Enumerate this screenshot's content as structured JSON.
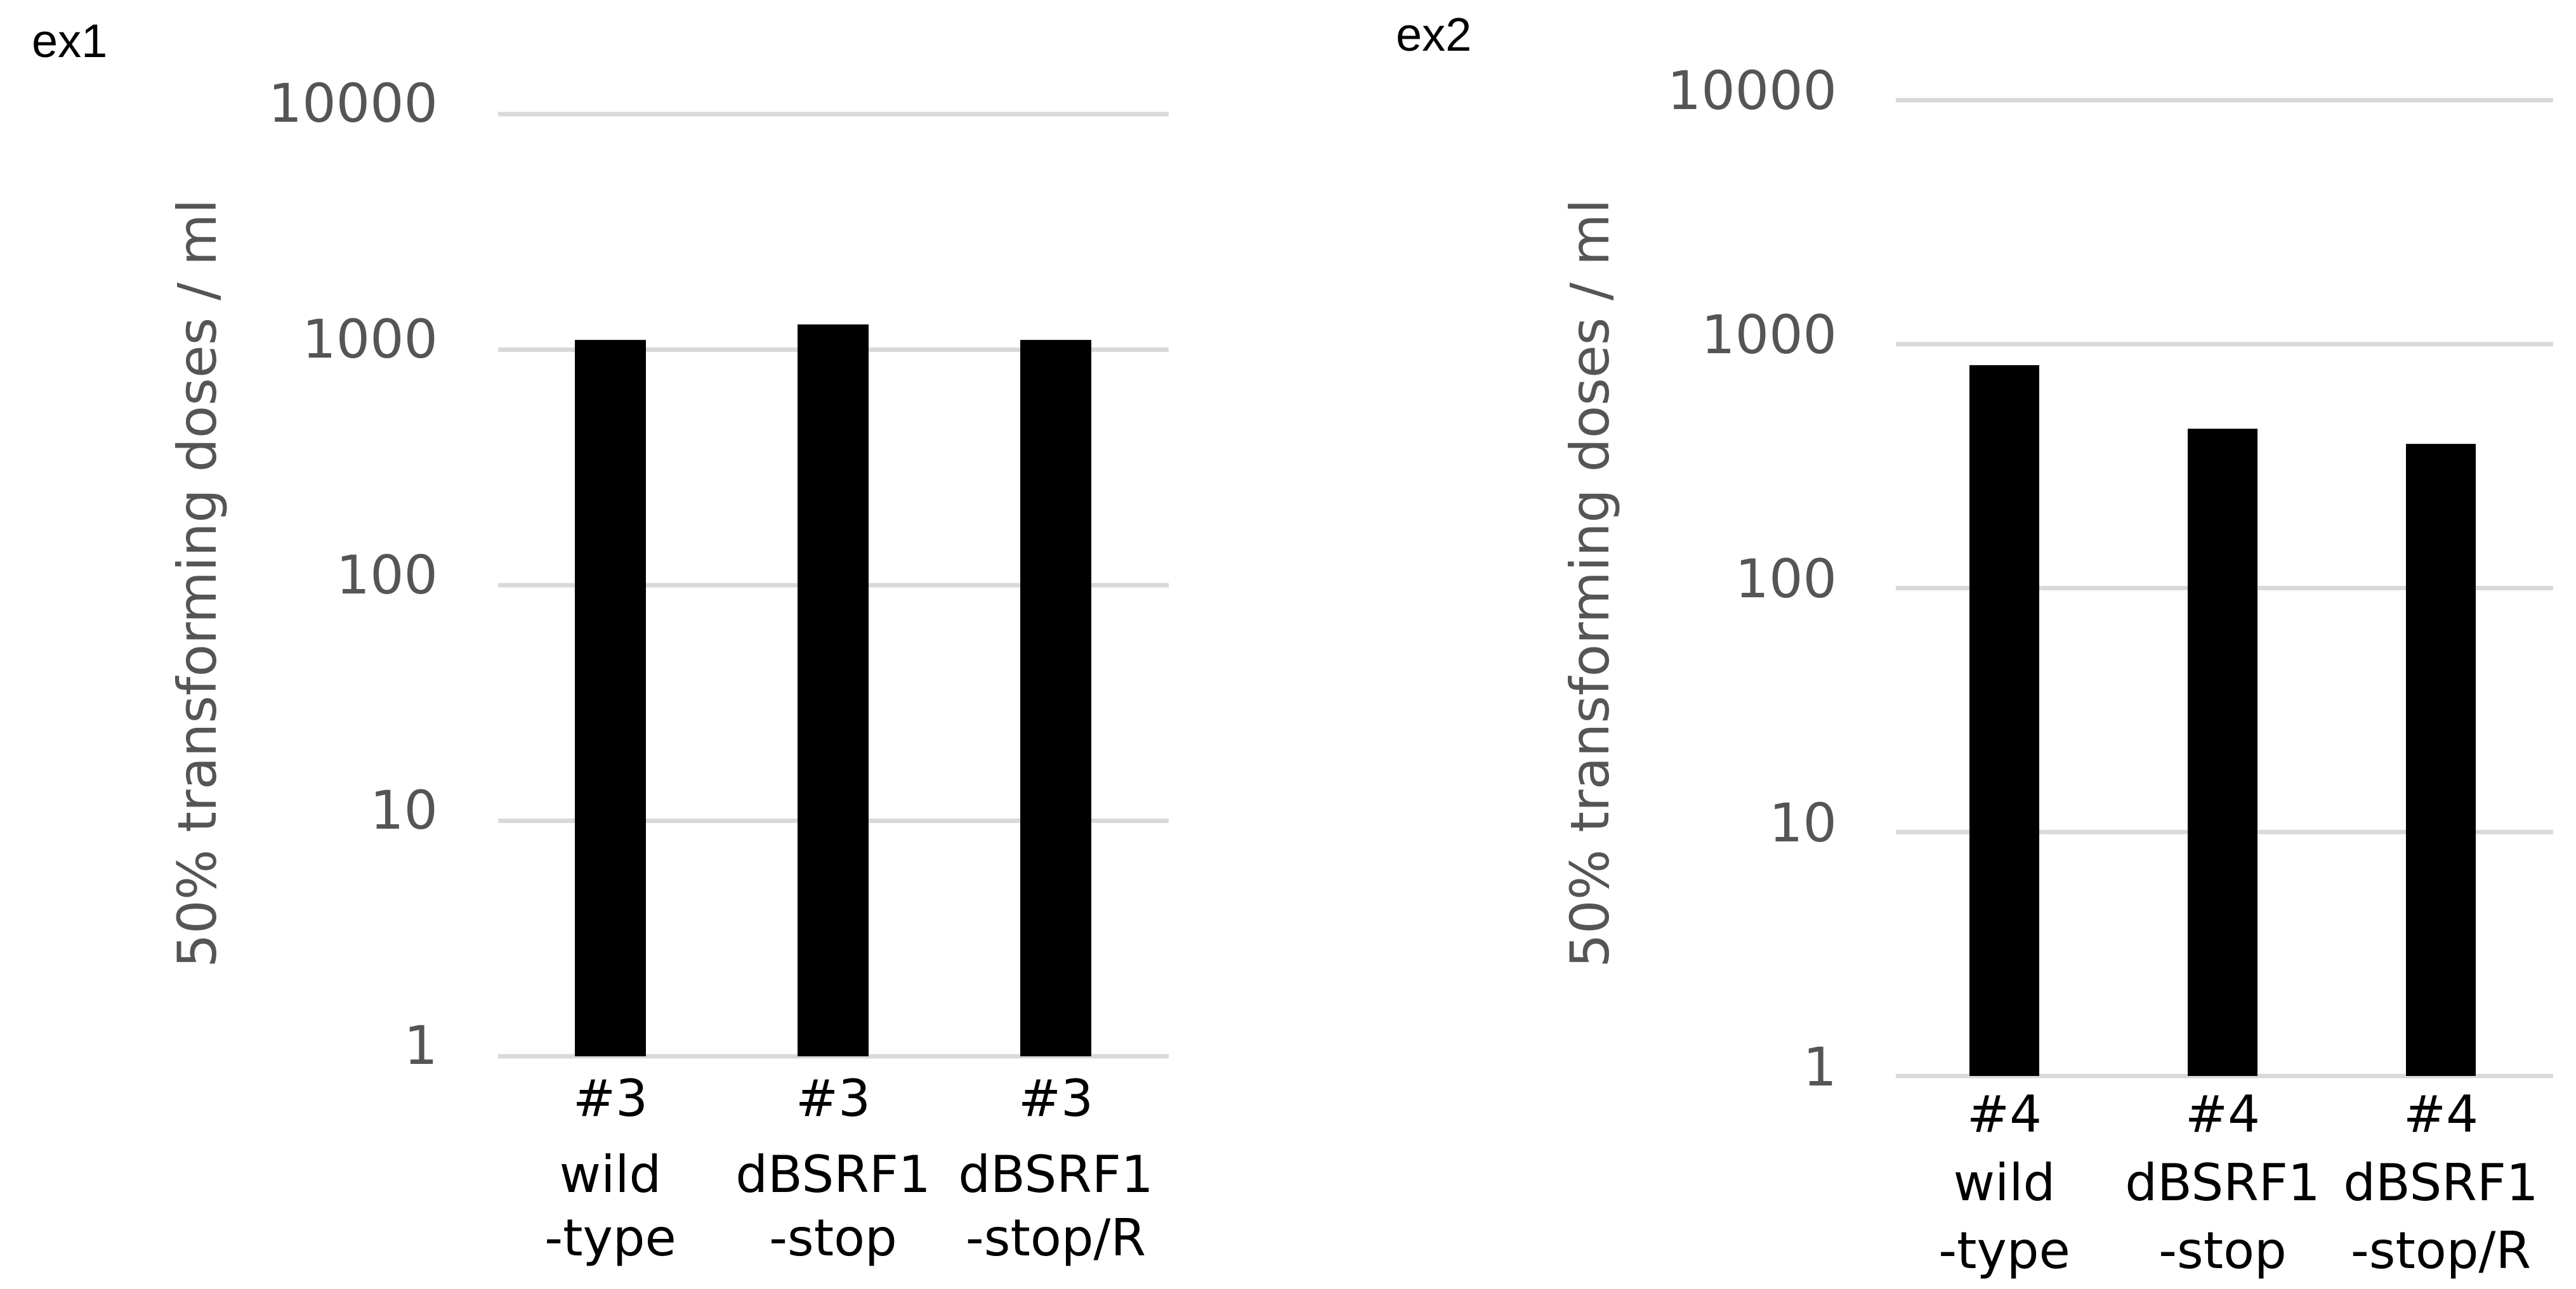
{
  "chart_data": [
    {
      "panel_label": "ex1",
      "type": "bar",
      "yscale": "log",
      "ylim": [
        1,
        10000
      ],
      "ylabel": "50% transforming doses / ml",
      "yticks": [
        "10000",
        "1000",
        "100",
        "10",
        "1"
      ],
      "grid": true,
      "categories": [
        [
          "#3",
          "wild",
          "-type"
        ],
        [
          "#3",
          "dBSRF1",
          "-stop"
        ],
        [
          "#3",
          "dBSRF1",
          "-stop/R"
        ]
      ],
      "values": [
        1100,
        1280,
        1100
      ],
      "bar_color": "#000000"
    },
    {
      "panel_label": "ex2",
      "type": "bar",
      "yscale": "log",
      "ylim": [
        1,
        10000
      ],
      "ylabel": "50% transforming doses / ml",
      "yticks": [
        "10000",
        "1000",
        "100",
        "10",
        "1"
      ],
      "grid": true,
      "categories": [
        [
          "#4",
          "wild",
          "-type"
        ],
        [
          "#4",
          "dBSRF1",
          "-stop"
        ],
        [
          "#4",
          "dBSRF1",
          "-stop/R"
        ]
      ],
      "values": [
        820,
        450,
        390
      ],
      "bar_color": "#000000"
    }
  ]
}
